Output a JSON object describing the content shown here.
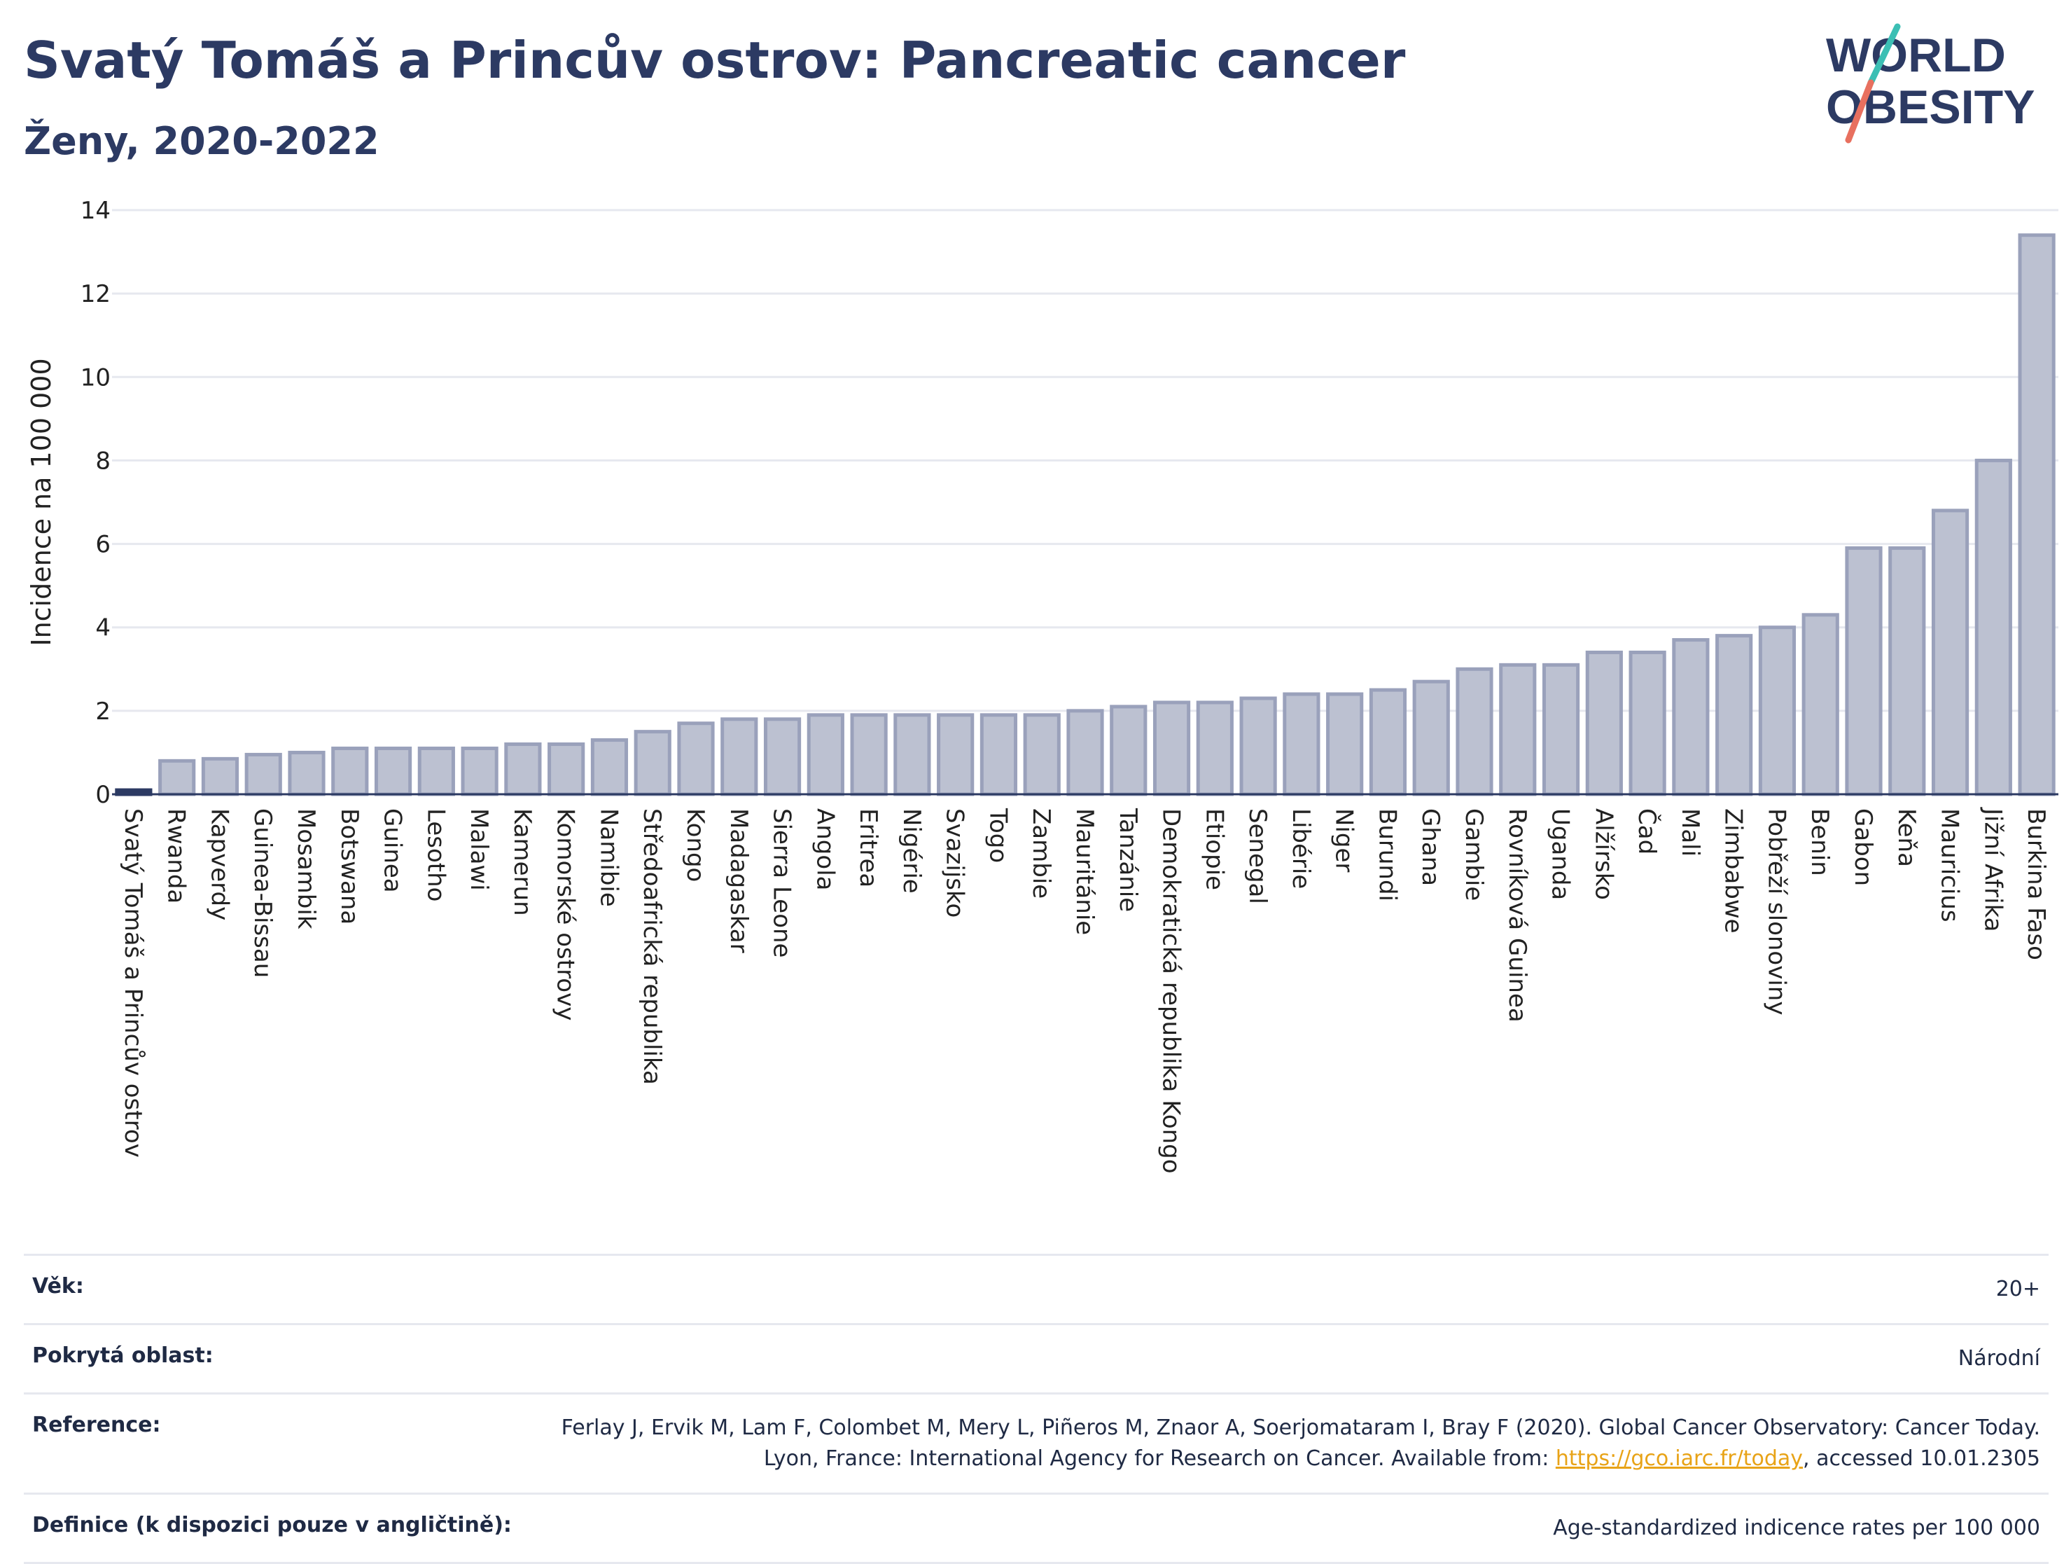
{
  "header": {
    "title": "Svatý Tomáš a Princův ostrov: Pancreatic cancer",
    "subtitle": "Ženy, 2020-2022"
  },
  "logo": {
    "line1": "WORLD",
    "line2": "OBESITY",
    "colors": {
      "text": "#2c3a63",
      "slash_top": "#3cbfb4",
      "slash_bottom": "#e8705f"
    }
  },
  "colors": {
    "bar_fill": "#bcc1d1",
    "bar_stroke": "#9aa1bb",
    "highlight": "#2c3a63",
    "grid": "#e6e8ef"
  },
  "chart_data": {
    "type": "bar",
    "title": "Svatý Tomáš a Princův ostrov: Pancreatic cancer",
    "subtitle": "Ženy, 2020-2022",
    "ylabel": "Incidence na 100 000",
    "xlabel": "",
    "ylim": [
      0,
      14
    ],
    "yticks": [
      0,
      2,
      4,
      6,
      8,
      10,
      12,
      14
    ],
    "grid": true,
    "highlight_category": "Svatý Tomáš a Princův ostrov",
    "categories": [
      "Svatý Tomáš a Princův ostrov",
      "Rwanda",
      "Kapverdy",
      "Guinea-Bissau",
      "Mosambik",
      "Botswana",
      "Guinea",
      "Lesotho",
      "Malawi",
      "Kamerun",
      "Komorské ostrovy",
      "Namibie",
      "Středoafrická republika",
      "Kongo",
      "Madagaskar",
      "Sierra Leone",
      "Angola",
      "Eritrea",
      "Nigérie",
      "Svazijsko",
      "Togo",
      "Zambie",
      "Mauritánie",
      "Tanzánie",
      "Demokratická republika Kongo",
      "Etiopie",
      "Senegal",
      "Libérie",
      "Niger",
      "Burundi",
      "Ghana",
      "Gambie",
      "Rovníková Guinea",
      "Uganda",
      "Alžírsko",
      "Čad",
      "Mali",
      "Zimbabwe",
      "Pobřeží slonoviny",
      "Benin",
      "Gabon",
      "Keňa",
      "Mauricius",
      "Jižní Afrika",
      "Burkina Faso"
    ],
    "values": [
      0.1,
      0.8,
      0.85,
      0.95,
      1.0,
      1.1,
      1.1,
      1.1,
      1.1,
      1.2,
      1.2,
      1.3,
      1.5,
      1.7,
      1.8,
      1.8,
      1.9,
      1.9,
      1.9,
      1.9,
      1.9,
      1.9,
      2.0,
      2.1,
      2.2,
      2.2,
      2.3,
      2.4,
      2.4,
      2.5,
      2.7,
      3.0,
      3.1,
      3.1,
      3.4,
      3.4,
      3.7,
      3.8,
      4.0,
      4.3,
      5.9,
      5.9,
      6.8,
      8.0,
      13.4
    ]
  },
  "info": {
    "rows": [
      {
        "key": "Věk:",
        "value": "20+"
      },
      {
        "key": "Pokrytá oblast:",
        "value": "Národní"
      },
      {
        "key": "Reference:",
        "value_prefix": "Ferlay J, Ervik M, Lam F, Colombet M, Mery L, Piñeros M, Znaor A, Soerjomataram I, Bray F (2020). Global Cancer Observatory: Cancer Today. Lyon, France: International Agency for Research on Cancer. Available from: ",
        "link": "https://gco.iarc.fr/today",
        "value_suffix": ", accessed 10.01.2305"
      },
      {
        "key": "Definice (k dispozici pouze v angličtině):",
        "value": "Age-standardized indicence rates per 100 000"
      }
    ]
  }
}
